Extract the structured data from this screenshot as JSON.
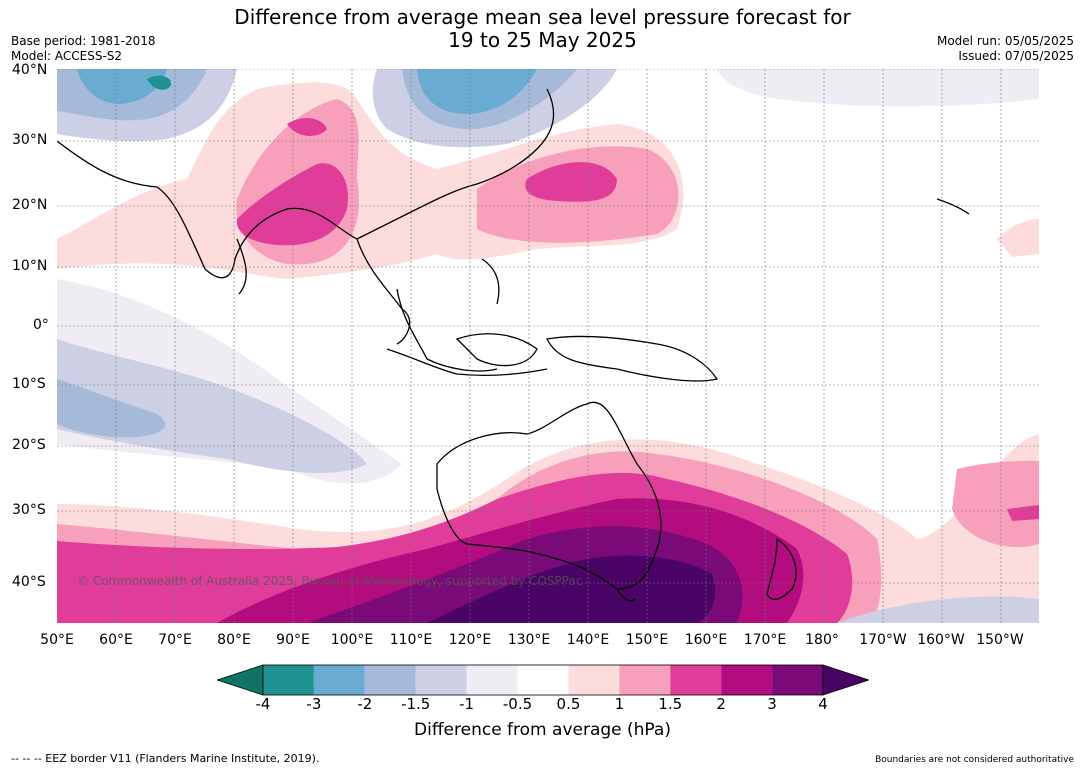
{
  "title_line1": "Difference from average mean sea level pressure forecast for",
  "title_line2": "19 to 25 May 2025",
  "base_period": "Base period: 1981-2018",
  "model": "Model: ACCESS-S2",
  "model_run": "Model run: 05/05/2025",
  "issued": "Issued: 07/05/2025",
  "lat_labels": [
    "40°N",
    "30°N",
    "20°N",
    "10°N",
    "0°",
    "10°S",
    "20°S",
    "30°S",
    "40°S"
  ],
  "lon_labels": [
    "50°E",
    "60°E",
    "70°E",
    "80°E",
    "90°E",
    "100°E",
    "110°E",
    "120°E",
    "130°E",
    "140°E",
    "150°E",
    "160°E",
    "170°E",
    "180°",
    "170°W",
    "160°W",
    "150°W"
  ],
  "colorbar": {
    "ticks": [
      "-4",
      "-3",
      "-2",
      "-1.5",
      "-1",
      "-0.5",
      "0.5",
      "1",
      "1.5",
      "2",
      "3",
      "4"
    ],
    "colors": [
      "#0f7466",
      "#1f9393",
      "#6aabd1",
      "#a5bad8",
      "#cdd0e4",
      "#f0ecf4",
      "#ffffff",
      "#fcdcdc",
      "#f8a0bb",
      "#e03d9b",
      "#b20c7f",
      "#7a0a77",
      "#4a0465"
    ],
    "label": "Difference from average (hPa)"
  },
  "copyright": "© Commonwealth of Australia 2025, Bureau of Meteorology, supported by COSPPac",
  "eez_note": "--  --  -- EEZ border V11 (Flanders Marine Institute, 2019).",
  "boundaries_note": "Boundaries are not considered authoritative"
}
